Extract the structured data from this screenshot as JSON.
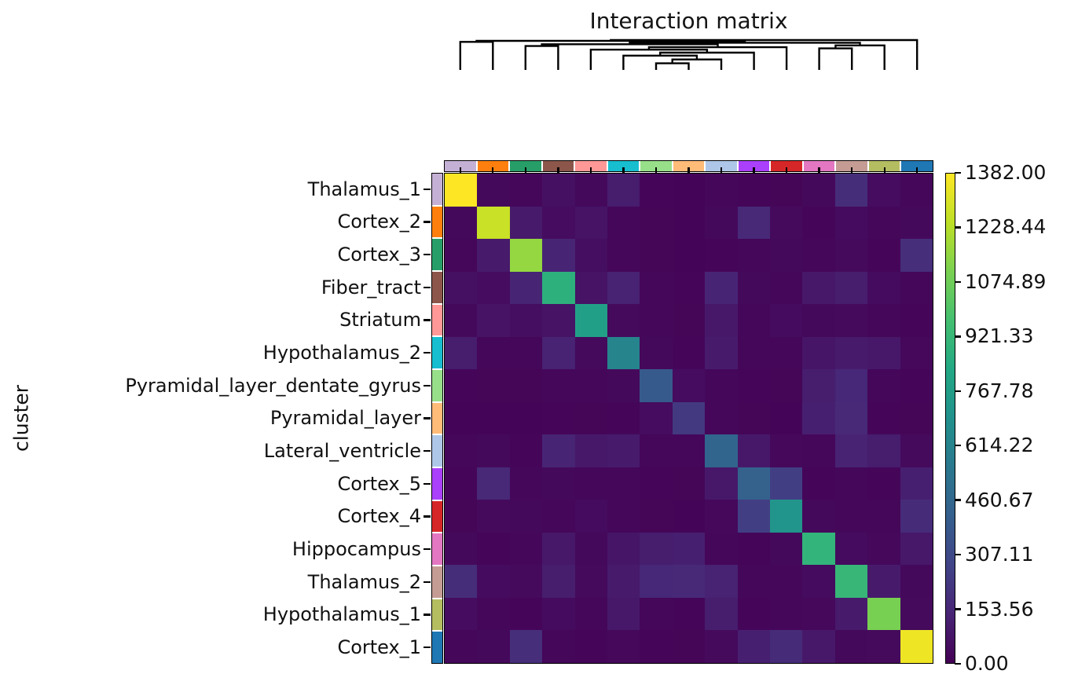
{
  "title": "Interaction matrix",
  "ylabel": "cluster",
  "chart_data": {
    "type": "heatmap",
    "title": "Interaction matrix",
    "ylabel": "cluster",
    "xlabel": "",
    "colormap": "viridis",
    "vmin": 0.0,
    "vmax": 1382.0,
    "grid": false,
    "legend_position": "right-colorbar",
    "has_top_dendrogram": true,
    "categories": [
      "Thalamus_1",
      "Cortex_2",
      "Cortex_3",
      "Fiber_tract",
      "Striatum",
      "Hypothalamus_2",
      "Pyramidal_layer_dentate_gyrus",
      "Pyramidal_layer",
      "Lateral_ventricle",
      "Cortex_5",
      "Cortex_4",
      "Hippocampus",
      "Thalamus_2",
      "Hypothalamus_1",
      "Cortex_1"
    ],
    "cluster_colors": [
      "#c5b0d5",
      "#ff7f0e",
      "#279e68",
      "#8c564b",
      "#ff9896",
      "#17becf",
      "#98df8a",
      "#ffbb78",
      "#aec7e8",
      "#aa40fc",
      "#d62728",
      "#e377c2",
      "#c49c94",
      "#b5bd61",
      "#1f77b4"
    ],
    "matrix": [
      [
        1382,
        30,
        25,
        60,
        30,
        110,
        20,
        15,
        25,
        20,
        18,
        30,
        175,
        45,
        22
      ],
      [
        30,
        1270,
        100,
        45,
        70,
        25,
        18,
        15,
        30,
        160,
        35,
        20,
        40,
        25,
        30
      ],
      [
        25,
        100,
        1160,
        140,
        50,
        22,
        18,
        15,
        20,
        25,
        30,
        22,
        35,
        20,
        180
      ],
      [
        60,
        45,
        140,
        880,
        70,
        130,
        25,
        20,
        140,
        30,
        22,
        90,
        110,
        40,
        25
      ],
      [
        30,
        70,
        50,
        70,
        780,
        35,
        22,
        18,
        90,
        25,
        40,
        30,
        35,
        22,
        20
      ],
      [
        110,
        25,
        22,
        130,
        35,
        620,
        30,
        20,
        100,
        22,
        25,
        80,
        100,
        90,
        28
      ],
      [
        20,
        18,
        18,
        25,
        22,
        30,
        390,
        45,
        25,
        20,
        18,
        110,
        150,
        25,
        20
      ],
      [
        15,
        15,
        15,
        20,
        18,
        20,
        45,
        230,
        22,
        18,
        15,
        120,
        160,
        20,
        18
      ],
      [
        25,
        30,
        20,
        140,
        90,
        100,
        25,
        22,
        450,
        90,
        28,
        25,
        130,
        110,
        35
      ],
      [
        20,
        160,
        25,
        30,
        25,
        22,
        20,
        18,
        90,
        430,
        250,
        20,
        25,
        20,
        120
      ],
      [
        18,
        35,
        30,
        22,
        40,
        25,
        18,
        15,
        28,
        250,
        715,
        30,
        25,
        22,
        170
      ],
      [
        30,
        20,
        22,
        90,
        30,
        80,
        110,
        120,
        25,
        20,
        30,
        900,
        40,
        28,
        90
      ],
      [
        175,
        40,
        35,
        110,
        35,
        100,
        150,
        160,
        130,
        25,
        25,
        40,
        915,
        100,
        30
      ],
      [
        45,
        25,
        20,
        40,
        22,
        90,
        25,
        20,
        110,
        20,
        22,
        28,
        100,
        1100,
        35
      ],
      [
        22,
        30,
        180,
        25,
        20,
        28,
        20,
        18,
        35,
        120,
        170,
        90,
        30,
        35,
        1350
      ]
    ],
    "colorbar_ticks": [
      "1382.00",
      "1228.44",
      "1074.89",
      "921.33",
      "767.78",
      "614.22",
      "460.67",
      "307.11",
      "153.56",
      "0.00"
    ],
    "dendrogram_merges": [
      [
        6,
        7,
        0.22
      ],
      [
        15,
        8,
        0.35
      ],
      [
        5,
        16,
        0.48
      ],
      [
        17,
        9,
        0.58
      ],
      [
        4,
        18,
        0.68
      ],
      [
        19,
        10,
        0.76
      ],
      [
        2,
        3,
        0.8
      ],
      [
        21,
        20,
        0.86
      ],
      [
        11,
        12,
        0.72
      ],
      [
        23,
        13,
        0.82
      ],
      [
        22,
        24,
        0.91
      ],
      [
        0,
        1,
        0.94
      ],
      [
        26,
        25,
        0.975
      ],
      [
        27,
        14,
        1.0
      ]
    ]
  }
}
